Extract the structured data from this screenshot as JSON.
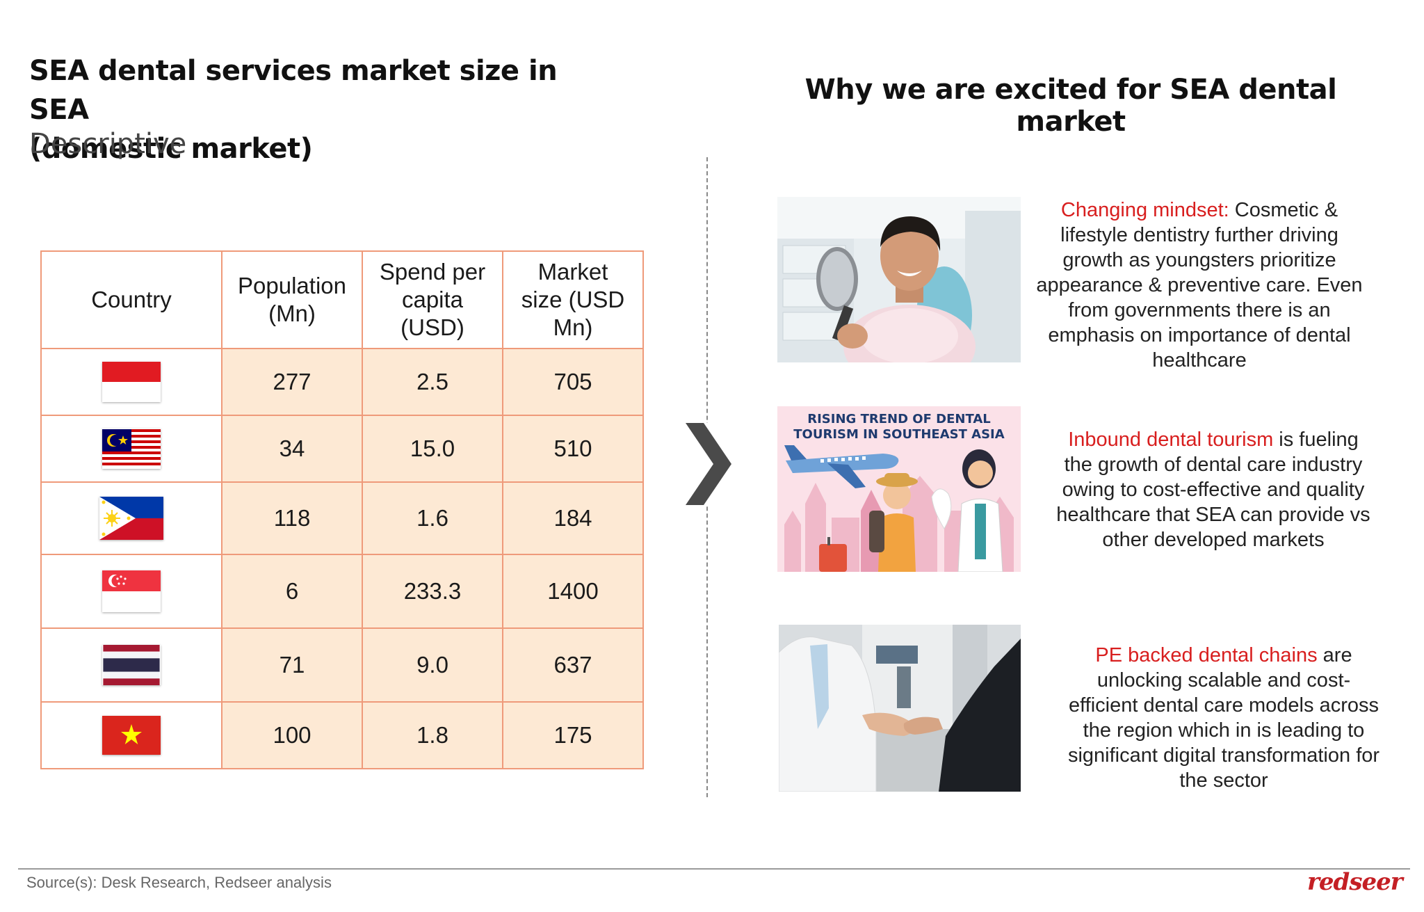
{
  "left": {
    "title_line1": "SEA dental services market size in SEA",
    "title_line2": "(domestic market)",
    "subtitle": "Descriptive"
  },
  "table": {
    "headers": {
      "country": "Country",
      "population": [
        "Population",
        "(Mn)"
      ],
      "spend": [
        "Spend per",
        "capita",
        "(USD)"
      ],
      "market": [
        "Market",
        "size (USD",
        "Mn)"
      ]
    },
    "rows": [
      {
        "flag": "indonesia-flag",
        "population": "277",
        "spend": "2.5",
        "market": "705"
      },
      {
        "flag": "malaysia-flag",
        "population": "34",
        "spend": "15.0",
        "market": "510"
      },
      {
        "flag": "philippines-flag",
        "population": "118",
        "spend": "1.6",
        "market": "184"
      },
      {
        "flag": "singapore-flag",
        "population": "6",
        "spend": "233.3",
        "market": "1400"
      },
      {
        "flag": "thailand-flag",
        "population": "71",
        "spend": "9.0",
        "market": "637"
      },
      {
        "flag": "vietnam-flag",
        "population": "100",
        "spend": "1.8",
        "market": "175"
      }
    ]
  },
  "right": {
    "title": "Why we are excited for SEA dental market",
    "items": [
      {
        "image": "dental-patient-mirror-photo",
        "highlight": "Changing mindset:",
        "lines": [
          " Cosmetic &",
          "lifestyle dentistry further driving",
          "growth as youngsters prioritize",
          "appearance & preventive care. Even",
          "from governments there is an",
          "emphasis on importance of dental",
          "healthcare"
        ]
      },
      {
        "image": "dental-tourism-illustration",
        "image_caption_line1": "RISING TREND OF DENTAL",
        "image_caption_line2": "TOURISM IN SOUTHEAST ASIA",
        "highlight": "Inbound dental tourism",
        "lines": [
          " is fueling",
          "the growth of dental care industry",
          "owing to cost-effective and quality",
          "healthcare that SEA can provide vs",
          "other developed markets"
        ]
      },
      {
        "image": "handshake-photo",
        "highlight": "PE backed dental chains",
        "lines": [
          " are",
          "unlocking scalable and cost-",
          "efficient dental care models across",
          "the region which in is leading to",
          "significant digital transformation for",
          "the sector"
        ]
      }
    ]
  },
  "footer": {
    "source": "Source(s): Desk Research, Redseer analysis",
    "brand": "redseer"
  },
  "colors": {
    "accent_red": "#d81e1e",
    "table_border": "#ef9a7a",
    "table_fill": "#fde9d4"
  }
}
